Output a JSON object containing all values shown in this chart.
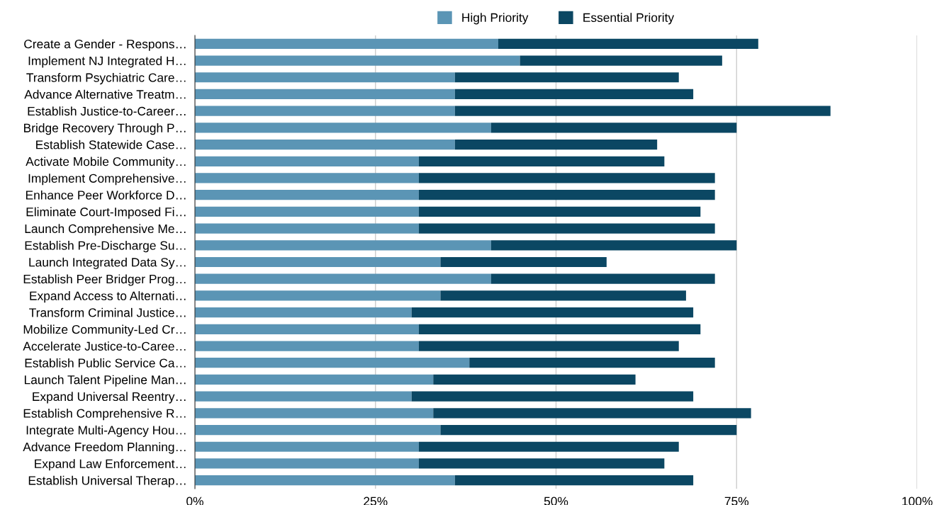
{
  "chart_data": {
    "type": "bar",
    "orientation": "horizontal",
    "stacked": true,
    "categories": [
      "Create a Gender - Respons…",
      "Implement NJ Integrated H…",
      "Transform Psychiatric Care…",
      "Advance Alternative Treatm…",
      "Establish Justice-to-Career…",
      "Bridge Recovery Through P…",
      "Establish Statewide Case…",
      "Activate Mobile Community…",
      "Implement Comprehensive…",
      "Enhance Peer Workforce D…",
      "Eliminate Court-Imposed Fi…",
      "Launch Comprehensive Me…",
      "Establish Pre-Discharge Su…",
      "Launch Integrated Data Sy…",
      "Establish Peer Bridger Prog…",
      "Expand Access to Alternati…",
      "Transform Criminal Justice…",
      "Mobilize Community-Led Cr…",
      "Accelerate Justice-to-Caree…",
      "Establish Public Service Ca…",
      "Launch Talent Pipeline Man…",
      "Expand Universal Reentry…",
      "Establish Comprehensive R…",
      "Integrate Multi-Agency Hou…",
      "Advance Freedom Planning…",
      "Expand Law Enforcement…",
      "Establish Universal Therap…"
    ],
    "series": [
      {
        "name": "High Priority",
        "color": "#5b95b5",
        "values": [
          42,
          45,
          36,
          36,
          36,
          41,
          36,
          31,
          31,
          31,
          31,
          31,
          41,
          34,
          41,
          34,
          30,
          31,
          31,
          38,
          33,
          30,
          33,
          34,
          31,
          31,
          36
        ]
      },
      {
        "name": "Essential Priority",
        "color": "#0b4763",
        "values": [
          36,
          28,
          31,
          33,
          52,
          34,
          28,
          34,
          41,
          41,
          39,
          41,
          34,
          23,
          31,
          34,
          39,
          39,
          36,
          34,
          28,
          39,
          44,
          41,
          36,
          34,
          33
        ]
      }
    ],
    "xlim": [
      0,
      100
    ],
    "xticks": [
      {
        "value": 0,
        "label": "0%"
      },
      {
        "value": 25,
        "label": "25%"
      },
      {
        "value": 50,
        "label": "50%"
      },
      {
        "value": 75,
        "label": "75%"
      },
      {
        "value": 100,
        "label": "100%"
      }
    ],
    "grid": "x",
    "legend": "top"
  }
}
